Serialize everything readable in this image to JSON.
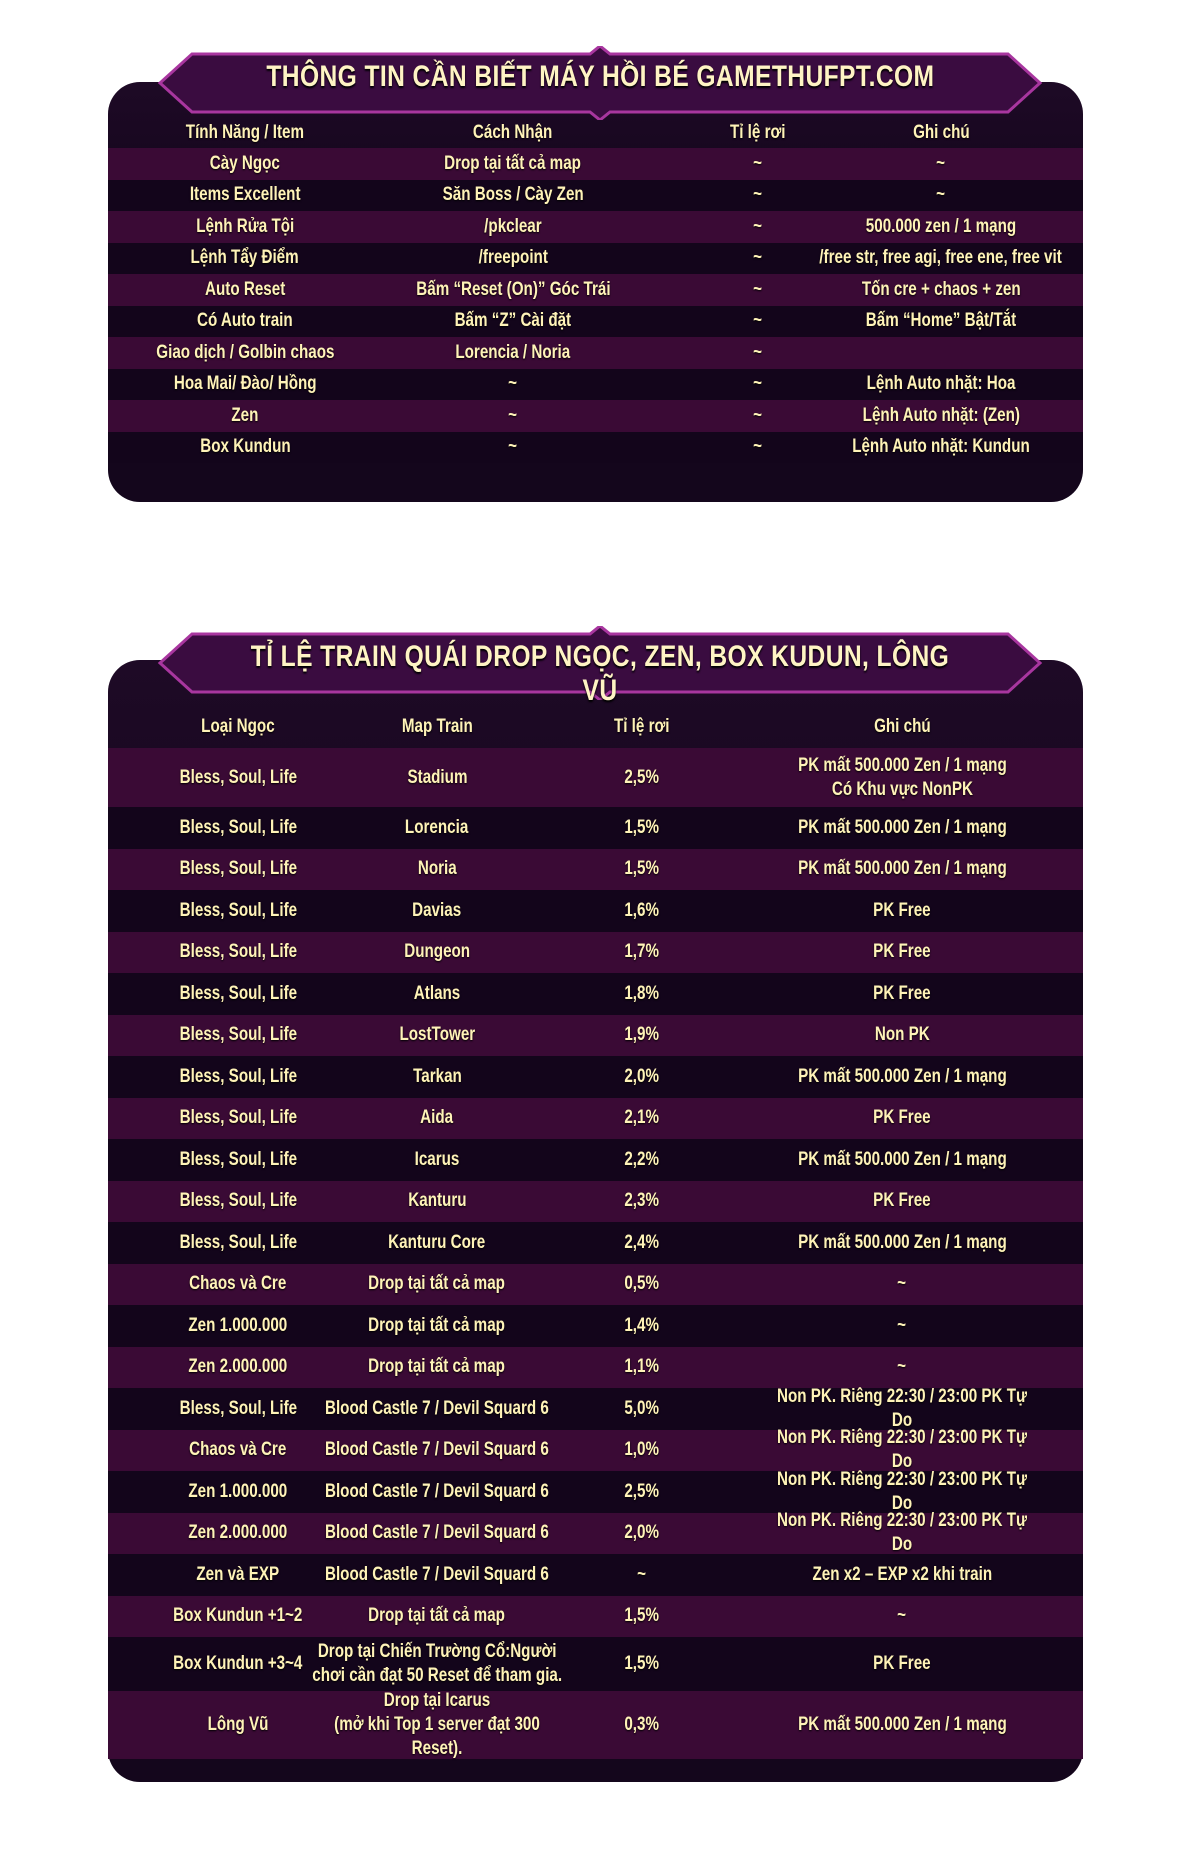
{
  "section1": {
    "title": "THÔNG TIN CẦN BIẾT MÁY HỒI BÉ GAMETHUFPT.COM",
    "headers": [
      "Tính Năng / Item",
      "Cách Nhận",
      "Tỉ lệ rơi",
      "Ghi chú"
    ],
    "rows": [
      [
        "Cày Ngọc",
        "Drop tại tất cả map",
        "~",
        "~"
      ],
      [
        "Items Excellent",
        "Săn Boss / Cày Zen",
        "~",
        "~"
      ],
      [
        "Lệnh Rửa Tội",
        "/pkclear",
        "~",
        "500.000 zen / 1 mạng"
      ],
      [
        "Lệnh Tẩy Điểm",
        "/freepoint",
        "~",
        "/free str, free agi, free ene, free vit"
      ],
      [
        "Auto Reset",
        "Bấm “Reset (On)” Góc Trái",
        "~",
        "Tốn cre + chaos + zen"
      ],
      [
        "Có Auto train",
        "Bấm “Z” Cài đặt",
        "~",
        "Bấm “Home” Bật/Tắt"
      ],
      [
        "Giao dịch / Golbin chaos",
        "Lorencia / Noria",
        "~",
        ""
      ],
      [
        "Hoa Mai/ Đào/ Hồng",
        "~",
        "~",
        "Lệnh Auto nhặt: Hoa"
      ],
      [
        "Zen",
        "~",
        "~",
        "Lệnh Auto nhặt: (Zen)"
      ],
      [
        "Box Kundun",
        "~",
        "~",
        "Lệnh Auto nhặt: Kundun"
      ]
    ]
  },
  "section2": {
    "title": "TỈ LỆ TRAIN QUÁI DROP NGỌC, ZEN, BOX KUDUN, LÔNG VŨ",
    "headers": [
      "Loại Ngọc",
      "Map Train",
      "Tỉ lệ rơi",
      "Ghi chú"
    ],
    "rows": [
      [
        "Bless, Soul, Life",
        "Stadium",
        "2,5%",
        "PK mất 500.000 Zen / 1 mạng\nCó Khu vực NonPK"
      ],
      [
        "Bless, Soul, Life",
        "Lorencia",
        "1,5%",
        "PK mất 500.000 Zen / 1 mạng"
      ],
      [
        "Bless, Soul, Life",
        "Noria",
        "1,5%",
        "PK mất 500.000 Zen / 1 mạng"
      ],
      [
        "Bless, Soul, Life",
        "Davias",
        "1,6%",
        "PK Free"
      ],
      [
        "Bless, Soul, Life",
        "Dungeon",
        "1,7%",
        "PK Free"
      ],
      [
        "Bless, Soul, Life",
        "Atlans",
        "1,8%",
        "PK Free"
      ],
      [
        "Bless, Soul, Life",
        "LostTower",
        "1,9%",
        "Non PK"
      ],
      [
        "Bless, Soul, Life",
        "Tarkan",
        "2,0%",
        "PK mất 500.000 Zen / 1 mạng"
      ],
      [
        "Bless, Soul, Life",
        "Aida",
        "2,1%",
        "PK Free"
      ],
      [
        "Bless, Soul, Life",
        "Icarus",
        "2,2%",
        "PK mất 500.000 Zen / 1 mạng"
      ],
      [
        "Bless, Soul, Life",
        "Kanturu",
        "2,3%",
        "PK Free"
      ],
      [
        "Bless, Soul, Life",
        "Kanturu Core",
        "2,4%",
        "PK mất 500.000 Zen / 1 mạng"
      ],
      [
        "Chaos và Cre",
        "Drop tại tất cả map",
        "0,5%",
        "~"
      ],
      [
        "Zen 1.000.000",
        "Drop tại tất cả map",
        "1,4%",
        "~"
      ],
      [
        "Zen 2.000.000",
        "Drop tại tất cả map",
        "1,1%",
        "~"
      ],
      [
        "Bless, Soul, Life",
        "Blood Castle 7 / Devil Squard 6",
        "5,0%",
        "Non PK. Riêng 22:30 / 23:00 PK Tự Do"
      ],
      [
        "Chaos và Cre",
        "Blood Castle 7 / Devil Squard 6",
        "1,0%",
        "Non PK. Riêng 22:30 / 23:00 PK Tự Do"
      ],
      [
        "Zen 1.000.000",
        "Blood Castle 7 / Devil Squard 6",
        "2,5%",
        "Non PK. Riêng 22:30 / 23:00 PK Tự Do"
      ],
      [
        "Zen 2.000.000",
        "Blood Castle 7 / Devil Squard 6",
        "2,0%",
        "Non PK. Riêng 22:30 / 23:00 PK Tự Do"
      ],
      [
        "Zen và EXP",
        "Blood Castle 7 / Devil Squard 6",
        "~",
        "Zen x2 – EXP x2 khi train"
      ],
      [
        "Box Kundun +1~2",
        "Drop tại tất cả map",
        "1,5%",
        "~"
      ],
      [
        "Box Kundun +3~4",
        "Drop tại Chiến Trường Cổ:Người\nchơi cần đạt 50 Reset để tham gia.",
        "1,5%",
        "PK Free"
      ],
      [
        "Lông Vũ",
        "Drop tại Icarus\n(mở khi Top 1 server đạt 300 Reset).",
        "0,3%",
        "PK mất 500.000 Zen / 1 mạng"
      ]
    ]
  },
  "colors": {
    "text": "#fff3b8",
    "row_stripe": "#3a0a35",
    "row_dark": "#13051b",
    "banner": "#3a0c40",
    "banner_border": "#9a2f9e"
  }
}
